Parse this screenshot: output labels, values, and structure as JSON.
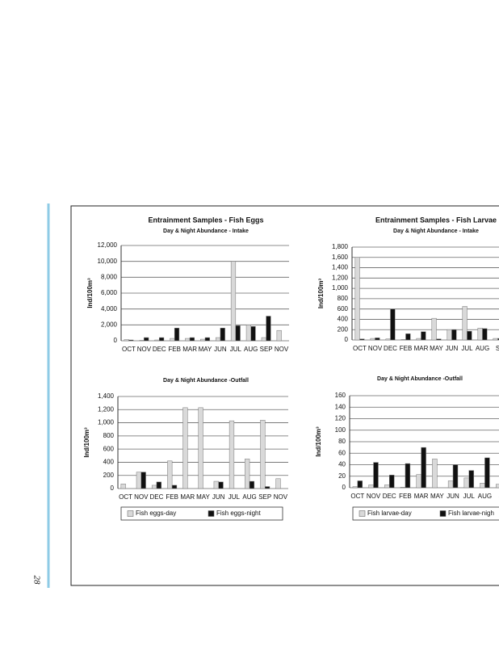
{
  "page_number": "28",
  "chart_data": [
    {
      "type": "bar",
      "title": "Entrainment Samples - Fish Eggs",
      "subtitle": "Day & Night Abundance - Intake",
      "y_label": "Ind/100m³",
      "categories": [
        "OCT",
        "NOV",
        "DEC",
        "FEB",
        "MAR",
        "MAY",
        "JUN",
        "JUL",
        "AUG",
        "SEP",
        "NOV"
      ],
      "series": [
        {
          "name": "Fish eggs-day",
          "color": "#d9d9d9",
          "values": [
            150,
            50,
            100,
            300,
            300,
            200,
            400,
            10000,
            2000,
            400,
            1300
          ]
        },
        {
          "name": "Fish eggs-night",
          "color": "#111111",
          "values": [
            100,
            400,
            400,
            1600,
            400,
            400,
            1600,
            1900,
            1800,
            3100,
            0
          ]
        }
      ],
      "ylim": [
        0,
        12000
      ],
      "yticks": [
        0,
        {
          "value": 2000,
          "label": "2,000"
        },
        {
          "value": 4000,
          "label": "4,000"
        },
        {
          "value": 6000,
          "label": "6,000"
        },
        {
          "value": 8000,
          "label": "8,000"
        },
        {
          "value": 10000,
          "label": "10,000"
        },
        {
          "value": 12000,
          "label": "12,000"
        }
      ],
      "grid": true
    },
    {
      "type": "bar",
      "title": "Entrainment Samples - Fish Larvae",
      "subtitle": "Day & Night Abundance - Intake",
      "y_label": "Ind/100m³",
      "categories": [
        "OCT",
        "NOV",
        "DEC",
        "FEB",
        "MAR",
        "MAY",
        "JUN",
        "JUL",
        "AUG",
        "S"
      ],
      "series": [
        {
          "name": "Fish larvae-day",
          "color": "#d9d9d9",
          "values": [
            1600,
            30,
            20,
            10,
            30,
            420,
            200,
            650,
            230,
            30
          ]
        },
        {
          "name": "Fish larvae-night",
          "color": "#111111",
          "values": [
            20,
            40,
            600,
            120,
            160,
            20,
            200,
            170,
            220,
            30
          ]
        }
      ],
      "ylim": [
        0,
        1800
      ],
      "yticks": [
        0,
        200,
        400,
        600,
        800,
        {
          "value": 1000,
          "label": "1,000"
        },
        {
          "value": 1200,
          "label": "1,200"
        },
        {
          "value": 1400,
          "label": "1,400"
        },
        {
          "value": 1600,
          "label": "1,600"
        },
        {
          "value": 1800,
          "label": "1,800"
        }
      ],
      "grid": true
    },
    {
      "type": "bar",
      "subtitle": "Day & Night Abundance -Outfall",
      "y_label": "Ind/100m³",
      "categories": [
        "OCT",
        "NOV",
        "DEC",
        "FEB",
        "MAR",
        "MAY",
        "JUN",
        "JUL",
        "AUG",
        "SEP",
        "NOV"
      ],
      "series": [
        {
          "name": "Fish eggs-day",
          "color": "#d9d9d9",
          "values": [
            70,
            250,
            50,
            420,
            1230,
            1230,
            110,
            1030,
            450,
            1040,
            150
          ]
        },
        {
          "name": "Fish eggs-night",
          "color": "#111111",
          "values": [
            0,
            250,
            100,
            50,
            0,
            0,
            100,
            0,
            110,
            30,
            0
          ]
        }
      ],
      "ylim": [
        0,
        1400
      ],
      "yticks": [
        0,
        200,
        400,
        600,
        800,
        {
          "value": 1000,
          "label": "1,000"
        },
        {
          "value": 1200,
          "label": "1,200"
        },
        {
          "value": 1400,
          "label": "1,400"
        }
      ],
      "grid": true,
      "legend": "bottom"
    },
    {
      "type": "bar",
      "subtitle": "Day & Night Abundance -Outfall",
      "y_label": "Ind/100m³",
      "categories": [
        "OCT",
        "NOV",
        "DEC",
        "FEB",
        "MAR",
        "MAY",
        "JUN",
        "JUL",
        "AUG",
        "S"
      ],
      "series": [
        {
          "name": "Fish larvae-day",
          "color": "#d9d9d9",
          "values": [
            2,
            5,
            5,
            1,
            23,
            50,
            12,
            17,
            8,
            6
          ]
        },
        {
          "name": "Fish larvae-nigh",
          "color": "#111111",
          "values": [
            12,
            44,
            22,
            42,
            70,
            0,
            40,
            30,
            52,
            0
          ]
        }
      ],
      "ylim": [
        0,
        160
      ],
      "yticks": [
        0,
        20,
        40,
        60,
        80,
        100,
        120,
        140,
        160
      ],
      "grid": true,
      "legend": "bottom"
    }
  ]
}
